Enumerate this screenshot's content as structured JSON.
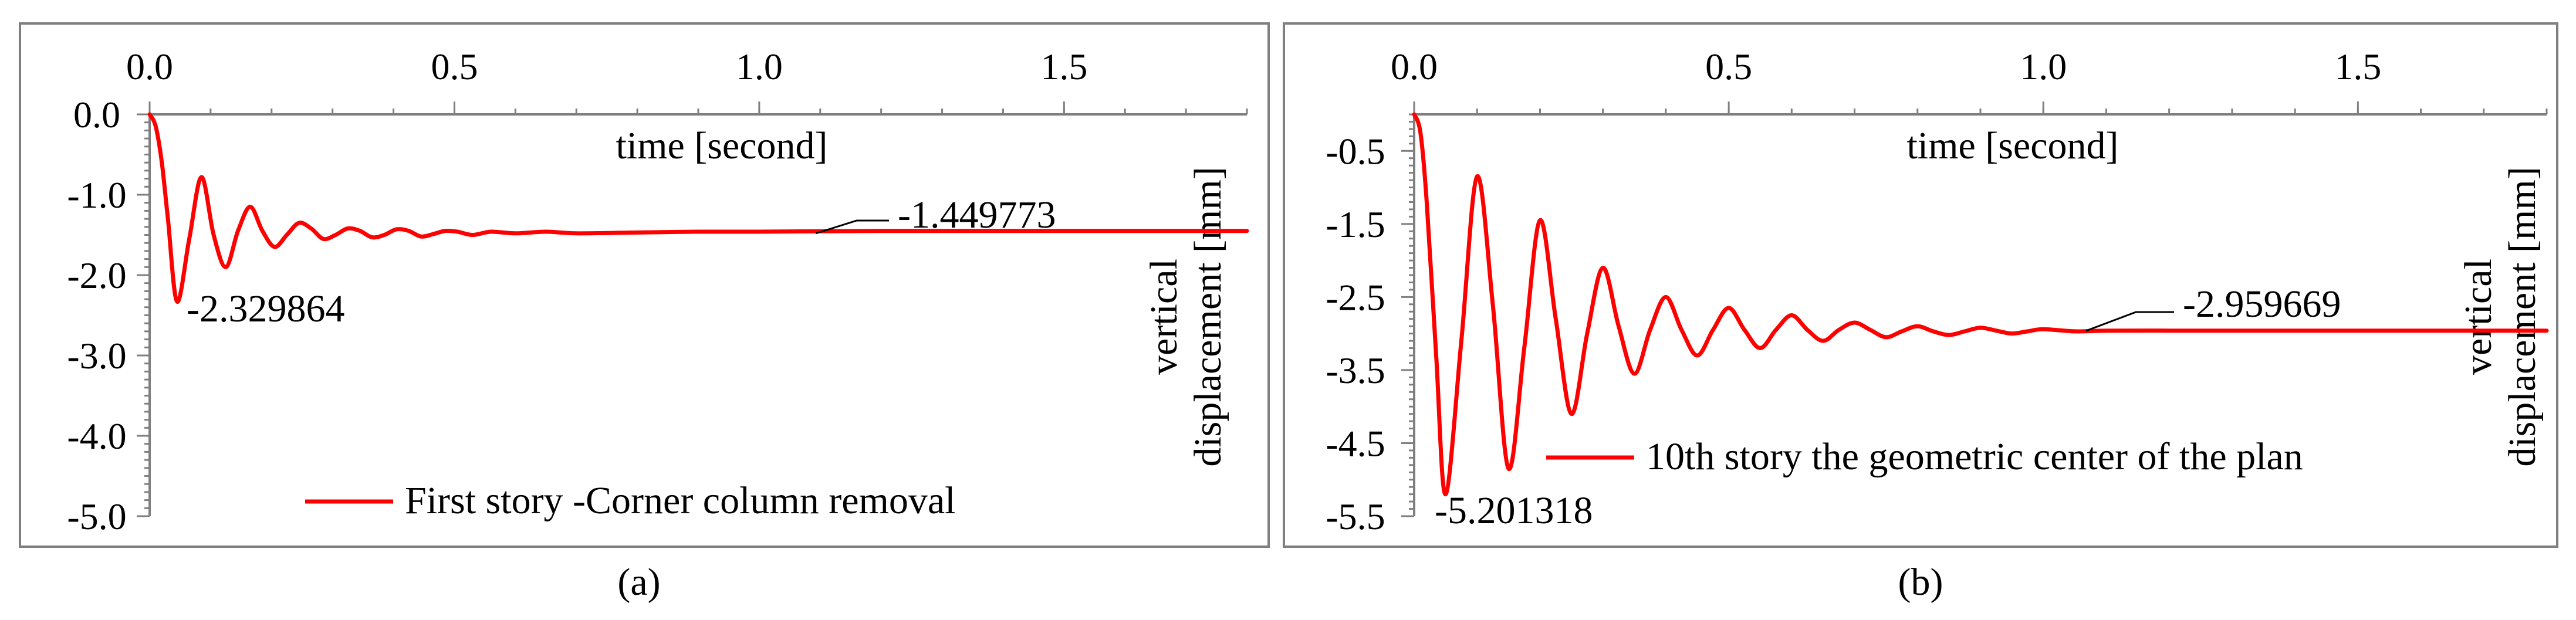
{
  "chart_data": [
    {
      "type": "line",
      "xlabel": "time [second]",
      "ylabel": "vertical displacement [mm]",
      "xlim": [
        0,
        1.8
      ],
      "ylim": [
        -5.0,
        0.0
      ],
      "x_ticks": [
        "0.0",
        "0.5",
        "1.0",
        "1.5"
      ],
      "x_tick_values": [
        0.0,
        0.5,
        1.0,
        1.5
      ],
      "y_ticks": [
        "0.0",
        "-1.0",
        "-2.0",
        "-3.0",
        "-4.0",
        "-5.0"
      ],
      "y_tick_values": [
        0.0,
        -1.0,
        -2.0,
        -3.0,
        -4.0,
        -5.0
      ],
      "x_axis_position": "top",
      "grid": false,
      "legend_position": "bottom-right",
      "series": [
        {
          "name": "First story -Corner column removal",
          "color": "#ff0000",
          "x": [
            0.0,
            0.01,
            0.02,
            0.03,
            0.045,
            0.065,
            0.085,
            0.105,
            0.125,
            0.145,
            0.165,
            0.185,
            0.205,
            0.225,
            0.245,
            0.265,
            0.285,
            0.305,
            0.325,
            0.345,
            0.365,
            0.385,
            0.405,
            0.425,
            0.445,
            0.465,
            0.485,
            0.505,
            0.53,
            0.56,
            0.6,
            0.65,
            0.7,
            0.8,
            0.9,
            1.0,
            1.1,
            1.2,
            1.3,
            1.4,
            1.5,
            1.6,
            1.7,
            1.8
          ],
          "y": [
            0.0,
            -0.15,
            -0.6,
            -1.3,
            -2.33,
            -1.55,
            -0.78,
            -1.5,
            -1.9,
            -1.45,
            -1.15,
            -1.45,
            -1.65,
            -1.5,
            -1.35,
            -1.42,
            -1.55,
            -1.5,
            -1.42,
            -1.45,
            -1.53,
            -1.5,
            -1.43,
            -1.45,
            -1.52,
            -1.49,
            -1.45,
            -1.46,
            -1.5,
            -1.46,
            -1.48,
            -1.46,
            -1.48,
            -1.47,
            -1.46,
            -1.46,
            -1.455,
            -1.45,
            -1.45,
            -1.45,
            -1.45,
            -1.45,
            -1.45,
            -1.45
          ]
        }
      ],
      "annotations": [
        {
          "text": "-2.329864",
          "x": 0.045,
          "y": -2.329864
        },
        {
          "text": "-1.449773",
          "x": 1.12,
          "y": -1.449773
        }
      ],
      "caption": "(a)"
    },
    {
      "type": "line",
      "xlabel": "time [second]",
      "ylabel": "vertical displacement [mm]",
      "xlim": [
        0,
        1.8
      ],
      "ylim": [
        -5.5,
        0.0
      ],
      "x_ticks": [
        "0.0",
        "0.5",
        "1.0",
        "1.5"
      ],
      "x_tick_values": [
        0.0,
        0.5,
        1.0,
        1.5
      ],
      "y_ticks": [
        "-0.5",
        "-1.5",
        "-2.5",
        "-3.5",
        "-4.5",
        "-5.5"
      ],
      "y_tick_values": [
        -0.5,
        -1.5,
        -2.5,
        -3.5,
        -4.5,
        -5.5
      ],
      "x_axis_position": "top",
      "grid": false,
      "legend_position": "bottom-right",
      "series": [
        {
          "name": "10th story the geometric center of the plan",
          "color": "#ff0000",
          "x": [
            0.0,
            0.01,
            0.02,
            0.035,
            0.05,
            0.075,
            0.1,
            0.125,
            0.15,
            0.175,
            0.2,
            0.225,
            0.25,
            0.275,
            0.3,
            0.325,
            0.35,
            0.375,
            0.4,
            0.425,
            0.45,
            0.475,
            0.5,
            0.525,
            0.55,
            0.575,
            0.6,
            0.625,
            0.65,
            0.675,
            0.7,
            0.725,
            0.75,
            0.775,
            0.8,
            0.825,
            0.85,
            0.875,
            0.9,
            0.925,
            0.95,
            0.975,
            1.0,
            1.05,
            1.1,
            1.2,
            1.3,
            1.4,
            1.5,
            1.6,
            1.7,
            1.8
          ],
          "y": [
            0.0,
            -0.25,
            -1.2,
            -3.3,
            -5.2,
            -3.1,
            -0.85,
            -2.6,
            -4.85,
            -3.2,
            -1.45,
            -2.8,
            -4.1,
            -3.0,
            -2.1,
            -2.9,
            -3.55,
            -2.95,
            -2.5,
            -2.95,
            -3.3,
            -2.95,
            -2.65,
            -2.95,
            -3.2,
            -2.95,
            -2.75,
            -2.95,
            -3.1,
            -2.95,
            -2.85,
            -2.95,
            -3.05,
            -2.97,
            -2.9,
            -2.97,
            -3.02,
            -2.97,
            -2.92,
            -2.96,
            -3.0,
            -2.97,
            -2.94,
            -2.97,
            -2.96,
            -2.96,
            -2.96,
            -2.96,
            -2.96,
            -2.96,
            -2.96,
            -2.96
          ]
        }
      ],
      "annotations": [
        {
          "text": "-5.201318",
          "x": 0.05,
          "y": -5.201318
        },
        {
          "text": "-2.959669",
          "x": 1.12,
          "y": -2.959669
        }
      ],
      "caption": "(b)"
    }
  ]
}
